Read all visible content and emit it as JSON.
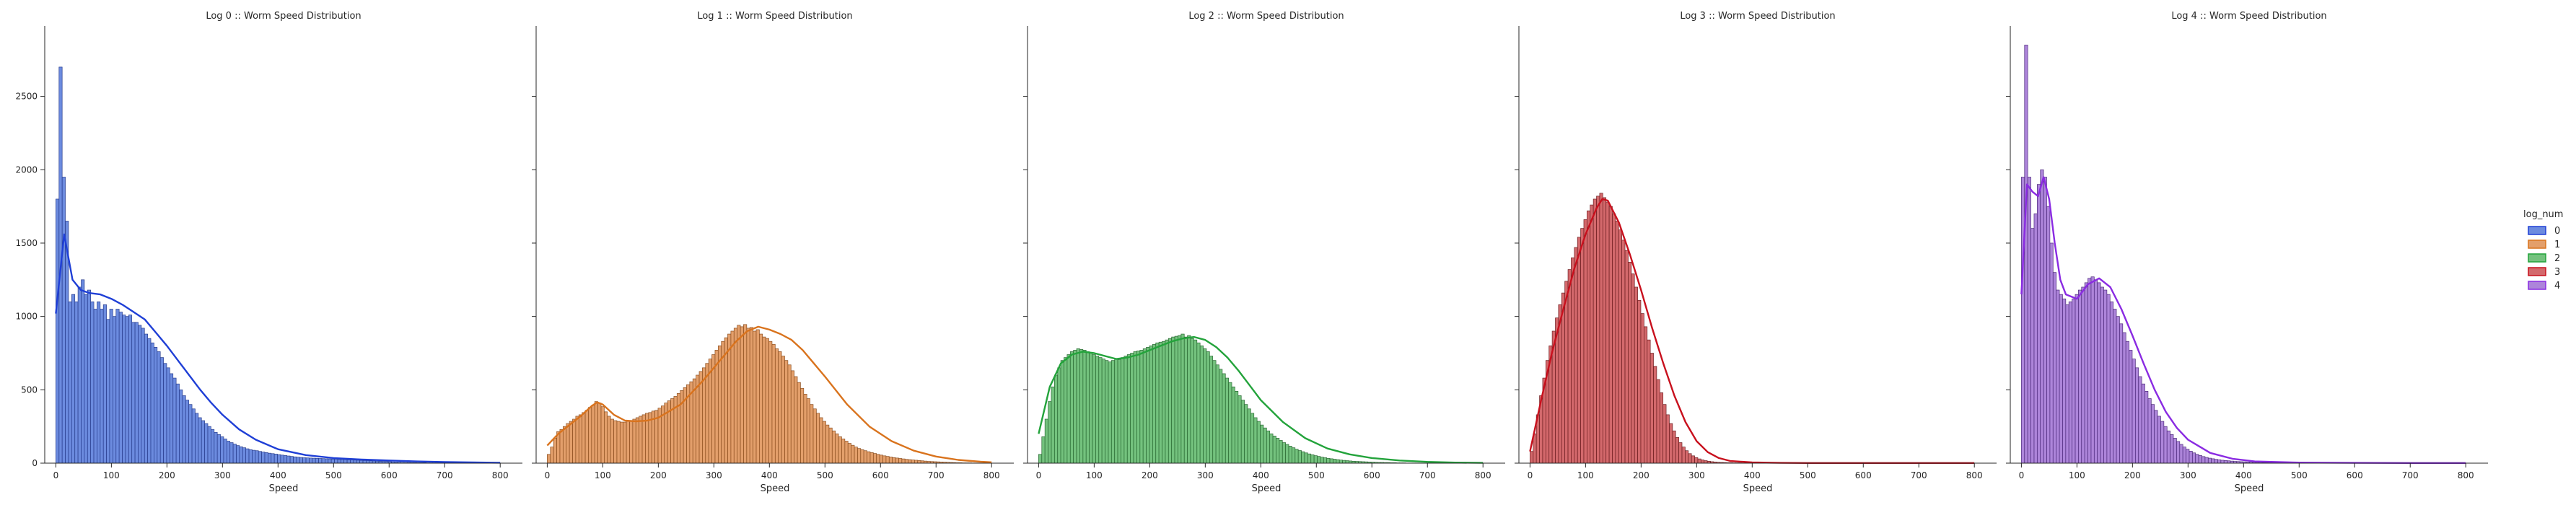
{
  "figure": {
    "legend_title": "log_num",
    "legend_items": [
      "0",
      "1",
      "2",
      "3",
      "4"
    ]
  },
  "chart_data": [
    {
      "type": "bar",
      "title": "Log 0 :: Worm Speed Distribution",
      "xlabel": "Speed",
      "ylabel": "",
      "xlim": [
        -20,
        840
      ],
      "ylim": [
        0,
        2980
      ],
      "xticks": [
        0,
        100,
        200,
        300,
        400,
        500,
        600,
        700,
        800
      ],
      "yticks": [
        0,
        500,
        1000,
        1500,
        2000,
        2500
      ],
      "color": "#4c72d8",
      "edge_color": "#2a3f8f",
      "kde_color": "#1f3fd6",
      "bin_width": 5.7,
      "x_start": 0,
      "values": [
        1800,
        2700,
        1950,
        1650,
        1100,
        1150,
        1100,
        1200,
        1250,
        1150,
        1180,
        1100,
        1050,
        1100,
        1050,
        1080,
        980,
        1050,
        1000,
        1050,
        1030,
        1010,
        1000,
        1010,
        960,
        960,
        940,
        920,
        880,
        850,
        820,
        790,
        760,
        720,
        680,
        650,
        610,
        580,
        540,
        500,
        460,
        430,
        400,
        370,
        340,
        310,
        290,
        270,
        250,
        230,
        210,
        195,
        180,
        165,
        150,
        140,
        130,
        120,
        112,
        105,
        98,
        92,
        88,
        85,
        80,
        76,
        72,
        68,
        65,
        62,
        58,
        55,
        52,
        49,
        46,
        43,
        41,
        39,
        37,
        36,
        35,
        34,
        33,
        32,
        31,
        30,
        29,
        28,
        27,
        26,
        25,
        24,
        23,
        22,
        21,
        20,
        19,
        18,
        17,
        16,
        15,
        14,
        13,
        12,
        11,
        10,
        9,
        8,
        7,
        6,
        5,
        5,
        4,
        4,
        3,
        3,
        3,
        2,
        2,
        2,
        2,
        1,
        1,
        1,
        1,
        1,
        1,
        1,
        1,
        1,
        1,
        1,
        1,
        1,
        1,
        1,
        1,
        1,
        1,
        1
      ],
      "kde_x": [
        0,
        15,
        30,
        45,
        60,
        80,
        100,
        120,
        140,
        160,
        180,
        200,
        220,
        240,
        260,
        280,
        300,
        330,
        360,
        400,
        450,
        500,
        550,
        600,
        650,
        700,
        750,
        800
      ],
      "kde_y": [
        1020,
        1560,
        1250,
        1180,
        1160,
        1150,
        1120,
        1080,
        1030,
        980,
        890,
        800,
        700,
        600,
        500,
        410,
        330,
        230,
        160,
        95,
        55,
        35,
        25,
        18,
        12,
        8,
        5,
        3
      ]
    },
    {
      "type": "bar",
      "title": "Log 1 :: Worm Speed Distribution",
      "xlabel": "Speed",
      "ylabel": "",
      "xlim": [
        -20,
        840
      ],
      "ylim": [
        0,
        2980
      ],
      "xticks": [
        0,
        100,
        200,
        300,
        400,
        500,
        600,
        700,
        800
      ],
      "yticks": [
        0,
        500,
        1000,
        1500,
        2000,
        2500
      ],
      "color": "#dd8a4a",
      "edge_color": "#8c4f20",
      "kde_color": "#d9731d",
      "bin_width": 5.7,
      "x_start": 0,
      "values": [
        60,
        110,
        170,
        215,
        230,
        250,
        270,
        285,
        300,
        320,
        330,
        345,
        360,
        380,
        395,
        420,
        410,
        385,
        350,
        320,
        300,
        290,
        285,
        280,
        280,
        285,
        290,
        300,
        310,
        320,
        330,
        340,
        345,
        355,
        360,
        375,
        390,
        410,
        425,
        440,
        455,
        475,
        495,
        515,
        535,
        555,
        575,
        600,
        625,
        650,
        680,
        710,
        740,
        770,
        800,
        830,
        855,
        880,
        900,
        920,
        940,
        930,
        945,
        920,
        925,
        900,
        910,
        880,
        860,
        850,
        830,
        810,
        780,
        760,
        730,
        700,
        670,
        630,
        590,
        550,
        510,
        470,
        440,
        400,
        370,
        340,
        310,
        285,
        260,
        240,
        220,
        200,
        180,
        165,
        150,
        135,
        122,
        110,
        100,
        92,
        85,
        78,
        72,
        66,
        60,
        55,
        50,
        46,
        42,
        38,
        35,
        32,
        29,
        26,
        24,
        22,
        20,
        18,
        16,
        14,
        12,
        11,
        10,
        9,
        8,
        7,
        6,
        5,
        4,
        3,
        3,
        2,
        2,
        2,
        1,
        1,
        1,
        1,
        1,
        1
      ],
      "kde_x": [
        0,
        20,
        40,
        60,
        80,
        90,
        100,
        120,
        140,
        160,
        180,
        200,
        240,
        280,
        320,
        340,
        360,
        380,
        400,
        420,
        440,
        460,
        480,
        500,
        540,
        580,
        620,
        660,
        700,
        740,
        780,
        800
      ],
      "kde_y": [
        120,
        200,
        260,
        320,
        390,
        415,
        400,
        330,
        290,
        285,
        290,
        310,
        400,
        560,
        740,
        830,
        900,
        930,
        910,
        880,
        840,
        770,
        680,
        590,
        400,
        250,
        150,
        85,
        45,
        22,
        10,
        6
      ]
    },
    {
      "type": "bar",
      "title": "Log 2 :: Worm Speed Distribution",
      "xlabel": "Speed",
      "ylabel": "",
      "xlim": [
        -20,
        840
      ],
      "ylim": [
        0,
        2980
      ],
      "xticks": [
        0,
        100,
        200,
        300,
        400,
        500,
        600,
        700,
        800
      ],
      "yticks": [
        0,
        500,
        1000,
        1500,
        2000,
        2500
      ],
      "color": "#55b562",
      "edge_color": "#2a6a33",
      "kde_color": "#23a33b",
      "bin_width": 5.7,
      "x_start": 0,
      "values": [
        60,
        180,
        300,
        420,
        520,
        600,
        650,
        700,
        720,
        740,
        760,
        770,
        780,
        775,
        770,
        760,
        750,
        740,
        730,
        720,
        710,
        700,
        690,
        700,
        710,
        705,
        720,
        730,
        740,
        750,
        760,
        765,
        770,
        780,
        790,
        800,
        810,
        820,
        825,
        830,
        840,
        850,
        860,
        865,
        870,
        880,
        860,
        870,
        850,
        840,
        820,
        800,
        780,
        760,
        730,
        700,
        670,
        640,
        610,
        580,
        550,
        520,
        490,
        460,
        430,
        400,
        370,
        340,
        310,
        285,
        260,
        240,
        220,
        200,
        185,
        170,
        155,
        140,
        128,
        116,
        105,
        95,
        86,
        78,
        70,
        63,
        57,
        51,
        46,
        41,
        37,
        33,
        30,
        27,
        24,
        21,
        19,
        17,
        15,
        13,
        12,
        11,
        10,
        9,
        8,
        7,
        6,
        5,
        5,
        4,
        4,
        3,
        3,
        2,
        2,
        2,
        1,
        1,
        1,
        1,
        1,
        1,
        1,
        1,
        1,
        1,
        1,
        1,
        1,
        1,
        1,
        1,
        1,
        1,
        1,
        1,
        1,
        1,
        1,
        1
      ],
      "kde_x": [
        0,
        20,
        40,
        60,
        80,
        100,
        120,
        140,
        160,
        180,
        200,
        220,
        240,
        260,
        280,
        300,
        320,
        340,
        360,
        380,
        400,
        440,
        480,
        520,
        560,
        600,
        650,
        700,
        750,
        800
      ],
      "kde_y": [
        200,
        520,
        680,
        740,
        760,
        750,
        730,
        710,
        720,
        740,
        770,
        800,
        830,
        850,
        860,
        840,
        790,
        720,
        630,
        530,
        430,
        280,
        170,
        100,
        60,
        35,
        18,
        9,
        4,
        2
      ]
    },
    {
      "type": "bar",
      "title": "Log 3 :: Worm Speed Distribution",
      "xlabel": "Speed",
      "ylabel": "",
      "xlim": [
        -20,
        840
      ],
      "ylim": [
        0,
        2980
      ],
      "xticks": [
        0,
        100,
        200,
        300,
        400,
        500,
        600,
        700,
        800
      ],
      "yticks": [
        0,
        500,
        1000,
        1500,
        2000,
        2500
      ],
      "color": "#c9484c",
      "edge_color": "#6e1f22",
      "kde_color": "#c8101d",
      "bin_width": 5.7,
      "x_start": 0,
      "values": [
        80,
        200,
        330,
        460,
        580,
        700,
        800,
        900,
        990,
        1080,
        1160,
        1240,
        1320,
        1400,
        1470,
        1540,
        1600,
        1660,
        1720,
        1760,
        1800,
        1820,
        1840,
        1810,
        1780,
        1750,
        1700,
        1650,
        1590,
        1520,
        1450,
        1370,
        1290,
        1200,
        1110,
        1020,
        930,
        840,
        750,
        660,
        570,
        480,
        400,
        330,
        270,
        220,
        175,
        140,
        110,
        85,
        65,
        50,
        38,
        29,
        22,
        17,
        13,
        10,
        8,
        6,
        5,
        4,
        3,
        3,
        2,
        2,
        2,
        1,
        1,
        1,
        1,
        1,
        1,
        1,
        1,
        1,
        1,
        1,
        1,
        1,
        1,
        1,
        1,
        1,
        1,
        1,
        1,
        1,
        1,
        1,
        1,
        1,
        1,
        1,
        1,
        1,
        1,
        1,
        1,
        1,
        1,
        1,
        1,
        1,
        1,
        1,
        1,
        1,
        1,
        1,
        1,
        1,
        1,
        1,
        1,
        1,
        1,
        1,
        1,
        1,
        1,
        1,
        1,
        1,
        1,
        1,
        1,
        1,
        1,
        1,
        1,
        1,
        1,
        1,
        1,
        1,
        1,
        1,
        1,
        1
      ],
      "kde_x": [
        0,
        20,
        40,
        60,
        80,
        100,
        120,
        130,
        140,
        160,
        180,
        200,
        220,
        240,
        260,
        280,
        300,
        320,
        340,
        360,
        400,
        450,
        500,
        600,
        700,
        800
      ],
      "kde_y": [
        80,
        430,
        760,
        1050,
        1330,
        1560,
        1740,
        1800,
        1790,
        1640,
        1420,
        1180,
        920,
        680,
        460,
        280,
        150,
        75,
        35,
        15,
        5,
        2,
        1,
        1,
        1,
        1
      ]
    },
    {
      "type": "bar",
      "title": "Log 4 :: Worm Speed Distribution",
      "xlabel": "Speed",
      "ylabel": "",
      "xlim": [
        -20,
        840
      ],
      "ylim": [
        0,
        2980
      ],
      "xticks": [
        0,
        100,
        200,
        300,
        400,
        500,
        600,
        700,
        800
      ],
      "yticks": [
        0,
        500,
        1000,
        1500,
        2000,
        2500
      ],
      "color": "#9b6ad2",
      "edge_color": "#4e2b7c",
      "kde_color": "#8a2be2",
      "bin_width": 5.7,
      "x_start": 0,
      "values": [
        1950,
        2850,
        1950,
        1600,
        1700,
        1900,
        2000,
        1950,
        1750,
        1500,
        1300,
        1180,
        1150,
        1120,
        1080,
        1100,
        1120,
        1150,
        1180,
        1200,
        1230,
        1260,
        1270,
        1250,
        1230,
        1200,
        1180,
        1150,
        1100,
        1050,
        1000,
        950,
        890,
        830,
        770,
        710,
        650,
        590,
        540,
        490,
        440,
        400,
        360,
        320,
        285,
        250,
        220,
        195,
        170,
        148,
        128,
        110,
        95,
        82,
        70,
        60,
        52,
        45,
        39,
        34,
        30,
        26,
        23,
        20,
        18,
        16,
        14,
        12,
        11,
        10,
        9,
        8,
        7,
        6,
        5,
        5,
        4,
        4,
        3,
        3,
        3,
        2,
        2,
        2,
        2,
        1,
        1,
        1,
        1,
        1,
        1,
        1,
        1,
        1,
        1,
        1,
        1,
        1,
        1,
        1,
        1,
        1,
        1,
        1,
        1,
        1,
        1,
        1,
        1,
        1,
        1,
        1,
        1,
        1,
        1,
        1,
        1,
        1,
        1,
        1,
        1,
        1,
        1,
        1,
        1,
        1,
        1,
        1,
        1,
        1,
        1,
        1,
        1,
        1,
        1,
        1,
        1,
        1,
        1,
        1
      ],
      "kde_x": [
        0,
        10,
        20,
        30,
        40,
        50,
        60,
        70,
        80,
        100,
        120,
        140,
        160,
        180,
        200,
        220,
        240,
        260,
        280,
        300,
        340,
        380,
        420,
        500,
        600,
        700,
        800
      ],
      "kde_y": [
        1150,
        1900,
        1850,
        1820,
        1950,
        1800,
        1500,
        1250,
        1150,
        1120,
        1220,
        1260,
        1200,
        1050,
        870,
        680,
        500,
        350,
        240,
        160,
        70,
        30,
        12,
        4,
        2,
        1,
        1
      ]
    }
  ]
}
